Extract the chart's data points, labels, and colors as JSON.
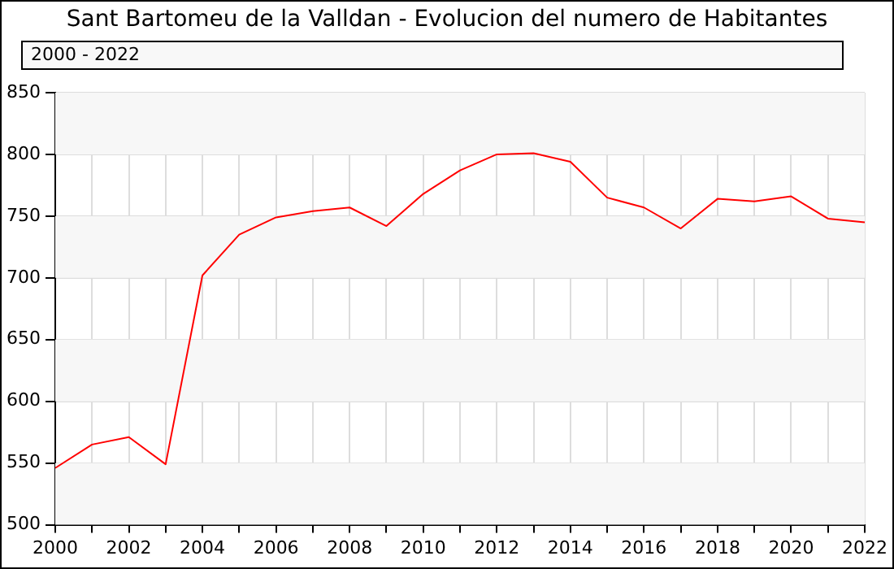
{
  "chart_data": {
    "type": "line",
    "title": "Sant Bartomeu de la Valldan - Evolucion del numero de Habitantes",
    "subtitle": "2000 - 2022",
    "x": [
      2000,
      2001,
      2002,
      2003,
      2004,
      2005,
      2006,
      2007,
      2008,
      2009,
      2010,
      2011,
      2012,
      2013,
      2014,
      2015,
      2016,
      2017,
      2018,
      2019,
      2020,
      2021,
      2022
    ],
    "series": [
      {
        "color": "#ff0000",
        "values": [
          546,
          565,
          571,
          549,
          702,
          735,
          749,
          754,
          757,
          742,
          768,
          787,
          800,
          801,
          794,
          765,
          757,
          740,
          764,
          762,
          766,
          748,
          745
        ]
      }
    ],
    "xlim": [
      2000,
      2022
    ],
    "xticks": [
      2000,
      {
        "value": 2001,
        "label": null
      },
      2002,
      {
        "value": 2003,
        "label": null
      },
      2004,
      {
        "value": 2005,
        "label": null
      },
      2006,
      {
        "value": 2007,
        "label": null
      },
      2008,
      {
        "value": 2009,
        "label": null
      },
      2010,
      {
        "value": 2011,
        "label": null
      },
      2012,
      {
        "value": 2013,
        "label": null
      },
      2014,
      {
        "value": 2015,
        "label": null
      },
      2016,
      {
        "value": 2017,
        "label": null
      },
      2018,
      {
        "value": 2019,
        "label": null
      },
      2020,
      {
        "value": 2021,
        "label": null
      },
      2022
    ],
    "ylim": [
      500,
      850
    ],
    "yticks": [
      500,
      550,
      600,
      650,
      700,
      750,
      800,
      850
    ],
    "grid": true,
    "legend": false,
    "marker": "none",
    "line_style": "solid"
  }
}
